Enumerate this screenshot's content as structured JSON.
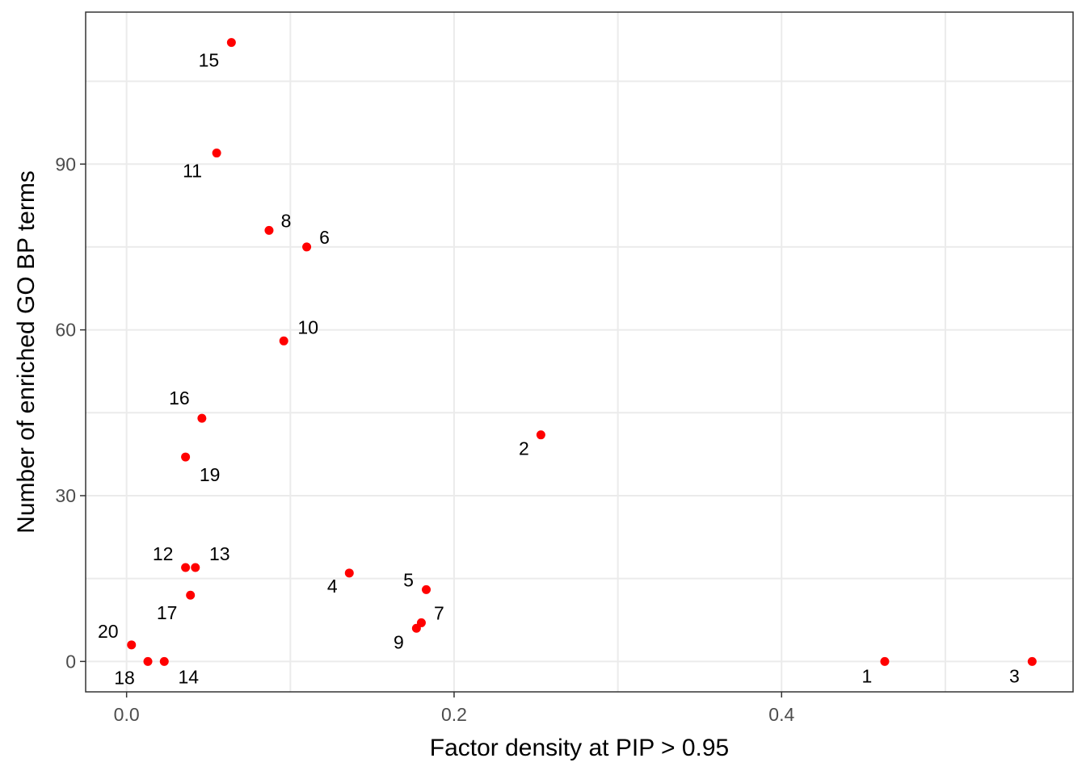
{
  "chart_data": {
    "type": "scatter",
    "title": "",
    "xlabel": "Factor density at PIP > 0.95",
    "ylabel": "Number of enriched GO BP terms",
    "xlim": [
      -0.025,
      0.578
    ],
    "ylim": [
      -5.5,
      117.5
    ],
    "x_ticks": [
      0.0,
      0.2,
      0.4
    ],
    "x_tick_labels": [
      "0.0",
      "0.2",
      "0.4"
    ],
    "y_ticks": [
      0,
      30,
      60,
      90
    ],
    "y_tick_labels": [
      "0",
      "30",
      "60",
      "90"
    ],
    "grid": true,
    "legend": "none",
    "point_color": "#ff0000",
    "points": [
      {
        "label": "1",
        "x": 0.463,
        "y": 0
      },
      {
        "label": "2",
        "x": 0.253,
        "y": 41
      },
      {
        "label": "3",
        "x": 0.553,
        "y": 0
      },
      {
        "label": "4",
        "x": 0.136,
        "y": 16
      },
      {
        "label": "5",
        "x": 0.183,
        "y": 13
      },
      {
        "label": "6",
        "x": 0.11,
        "y": 75
      },
      {
        "label": "7",
        "x": 0.18,
        "y": 7
      },
      {
        "label": "8",
        "x": 0.087,
        "y": 78
      },
      {
        "label": "9",
        "x": 0.177,
        "y": 6
      },
      {
        "label": "10",
        "x": 0.096,
        "y": 58
      },
      {
        "label": "11",
        "x": 0.055,
        "y": 92
      },
      {
        "label": "12",
        "x": 0.036,
        "y": 17
      },
      {
        "label": "13",
        "x": 0.042,
        "y": 17
      },
      {
        "label": "14",
        "x": 0.023,
        "y": 0
      },
      {
        "label": "15",
        "x": 0.064,
        "y": 112
      },
      {
        "label": "16",
        "x": 0.046,
        "y": 44
      },
      {
        "label": "17",
        "x": 0.039,
        "y": 12
      },
      {
        "label": "18",
        "x": 0.013,
        "y": 0
      },
      {
        "label": "19",
        "x": 0.036,
        "y": 37
      },
      {
        "label": "20",
        "x": 0.003,
        "y": 3
      }
    ]
  }
}
